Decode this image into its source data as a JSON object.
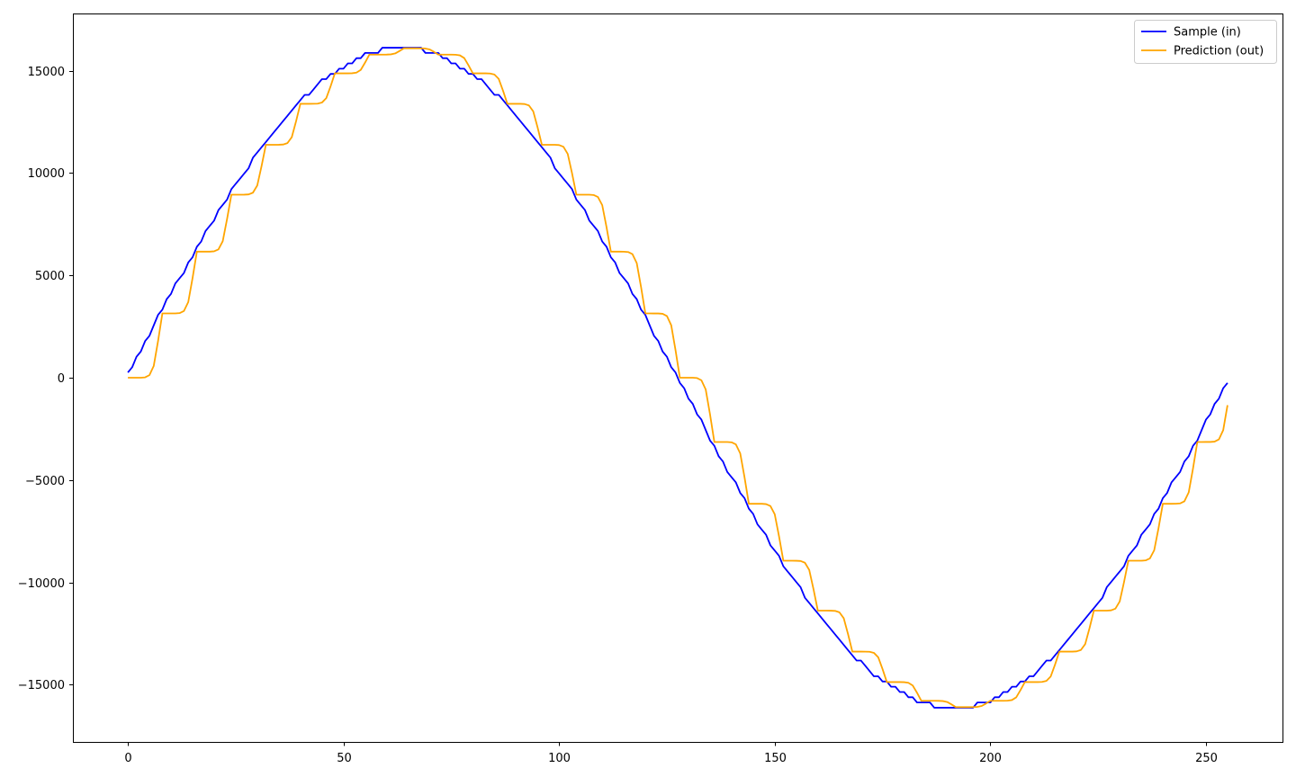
{
  "chart_data": {
    "type": "line",
    "title": "",
    "xlabel": "",
    "ylabel": "",
    "xlim": [
      -12.75,
      267.75
    ],
    "ylim": [
      -17800,
      17800
    ],
    "xticks": [
      0,
      50,
      100,
      150,
      200,
      250
    ],
    "yticks": [
      -15000,
      -10000,
      -5000,
      0,
      5000,
      10000,
      15000
    ],
    "xtick_labels": [
      "0",
      "50",
      "100",
      "150",
      "200",
      "250"
    ],
    "ytick_labels": [
      "−15000",
      "−10000",
      "−5000",
      "0",
      "5000",
      "10000",
      "15000"
    ],
    "grid": false,
    "legend_position": "upper right",
    "x": {
      "start": 0,
      "end": 255,
      "step": 1
    },
    "series": [
      {
        "name": "Sample (in)",
        "color": "#0000ff",
        "amplitude": 16100,
        "period": 256,
        "quantization_step": 256,
        "phase_samples": 0.5
      },
      {
        "name": "Prediction (out)",
        "color": "#ffa500",
        "amplitude": 16100,
        "period": 256,
        "plateau_width": 8,
        "transition_smoothing": 0.6
      }
    ]
  }
}
